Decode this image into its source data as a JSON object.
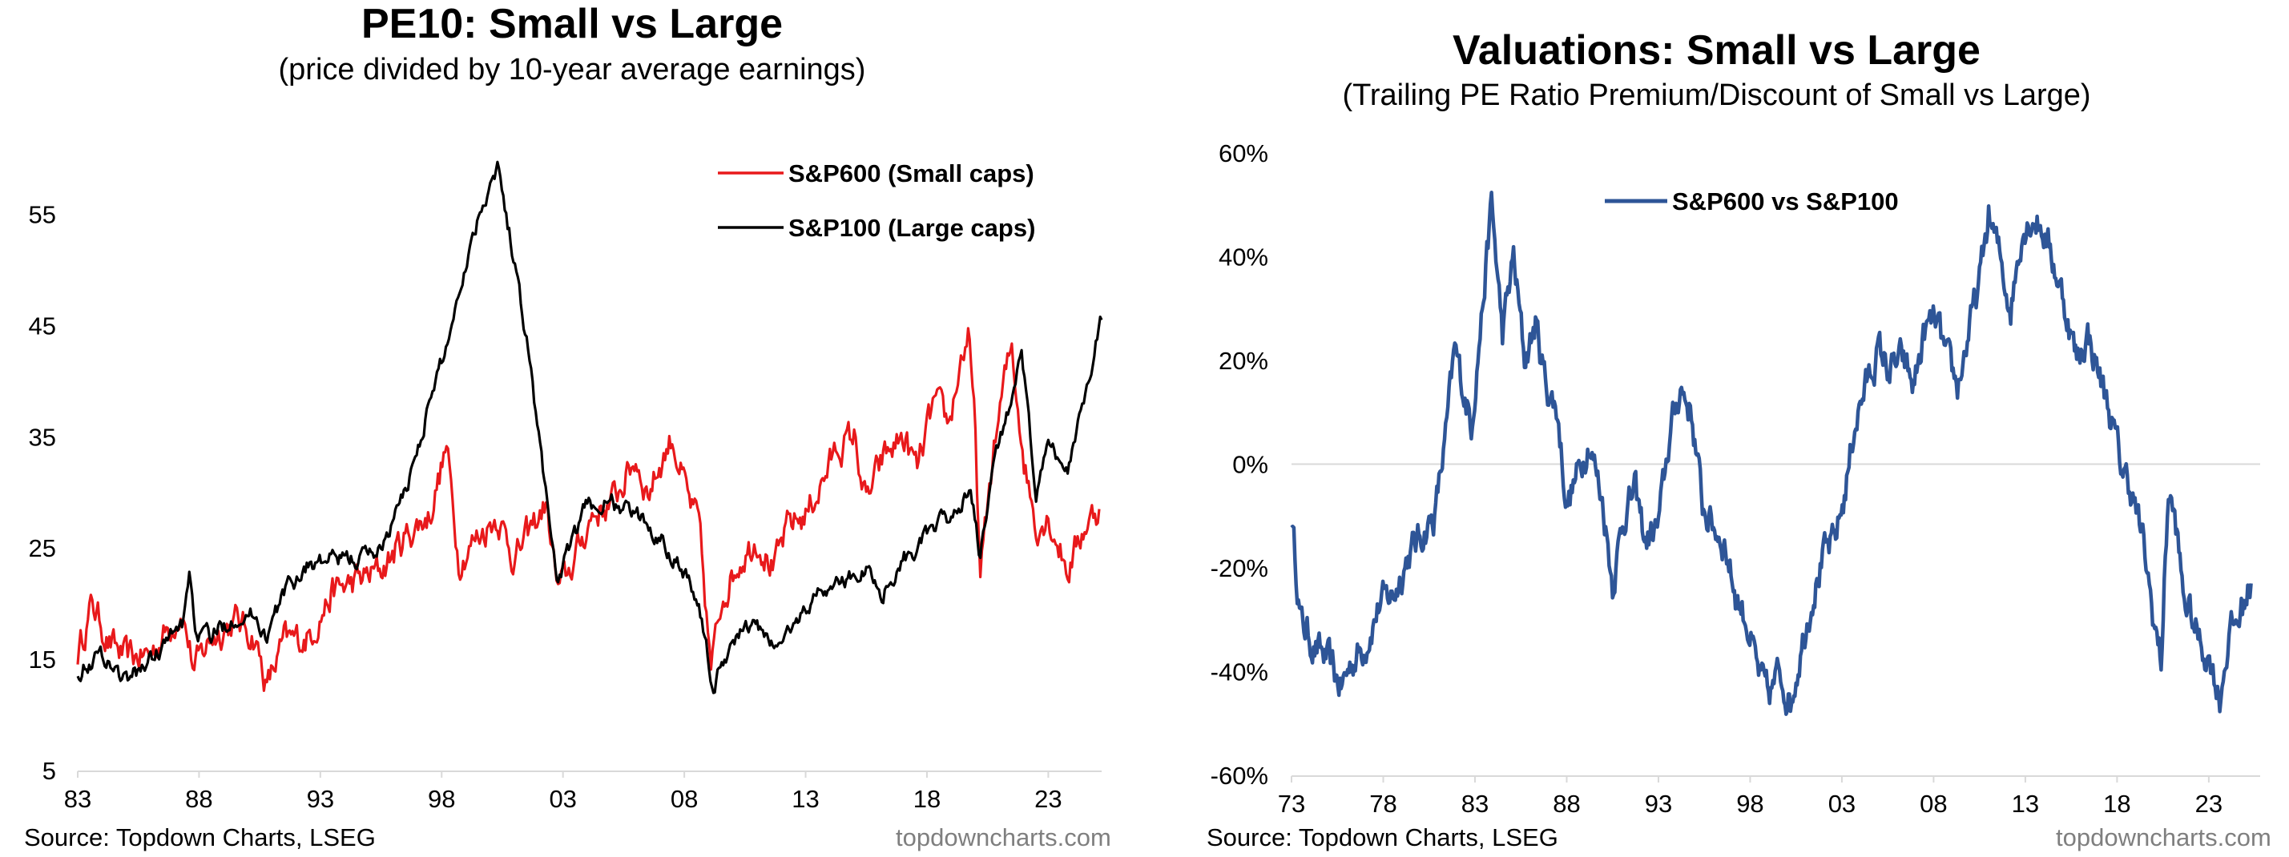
{
  "left": {
    "title": "PE10: Small vs Large",
    "subtitle": "(price divided by 10-year average earnings)",
    "source": "Source: Topdown Charts, LSEG",
    "brand": "topdowncharts.com"
  },
  "right": {
    "title": "Valuations: Small vs Large",
    "subtitle": "(Trailing PE Ratio Premium/Discount of Small vs Large)",
    "source": "Source: Topdown Charts, LSEG",
    "brand": "topdowncharts.com"
  },
  "chart_data": [
    {
      "type": "line",
      "title": "PE10: Small vs Large",
      "subtitle": "(price divided by 10-year average earnings)",
      "xlabel": "",
      "ylabel": "",
      "xlim": [
        1983,
        2025.2
      ],
      "ylim": [
        5,
        60
      ],
      "yticks": [
        5,
        15,
        25,
        35,
        45,
        55
      ],
      "xticks": [
        1983,
        1988,
        1993,
        1998,
        2003,
        2008,
        2013,
        2018,
        2023
      ],
      "xtick_labels": [
        "83",
        "88",
        "93",
        "98",
        "03",
        "08",
        "13",
        "18",
        "23"
      ],
      "grid": false,
      "legend_position": "top-right",
      "series": [
        {
          "name": "S&P600 (Small caps)",
          "color": "#e8191b",
          "points": [
            [
              1983.0,
              15.5
            ],
            [
              1983.6,
              20
            ],
            [
              1984.3,
              16.5
            ],
            [
              1985,
              15
            ],
            [
              1986,
              15.5
            ],
            [
              1987.3,
              19.5
            ],
            [
              1987.8,
              14
            ],
            [
              1988.5,
              17
            ],
            [
              1989.5,
              18.5
            ],
            [
              1990.3,
              17
            ],
            [
              1990.8,
              12.5
            ],
            [
              1991.5,
              16.5
            ],
            [
              1992.5,
              17
            ],
            [
              1993.5,
              21
            ],
            [
              1994.5,
              22
            ],
            [
              1995.5,
              23
            ],
            [
              1996.5,
              26
            ],
            [
              1997.5,
              28
            ],
            [
              1998.2,
              34
            ],
            [
              1998.7,
              24
            ],
            [
              1999.5,
              26
            ],
            [
              2000.3,
              28
            ],
            [
              2001,
              24
            ],
            [
              2001.8,
              27
            ],
            [
              2002.3,
              29
            ],
            [
              2002.8,
              21
            ],
            [
              2003.3,
              23
            ],
            [
              2004.2,
              28
            ],
            [
              2005,
              29
            ],
            [
              2006,
              33
            ],
            [
              2006.5,
              30
            ],
            [
              2007.5,
              35
            ],
            [
              2008.2,
              29
            ],
            [
              2008.6,
              27
            ],
            [
              2009.1,
              14
            ],
            [
              2009.6,
              21
            ],
            [
              2010.3,
              24
            ],
            [
              2011,
              26
            ],
            [
              2011.7,
              23
            ],
            [
              2012.3,
              27
            ],
            [
              2013,
              28
            ],
            [
              2013.7,
              31
            ],
            [
              2014.3,
              34
            ],
            [
              2015,
              35
            ],
            [
              2015.5,
              29
            ],
            [
              2016.2,
              33
            ],
            [
              2017,
              35
            ],
            [
              2017.6,
              32
            ],
            [
              2018.3,
              38
            ],
            [
              2018.9,
              36
            ],
            [
              2019.4,
              42
            ],
            [
              2019.7,
              44
            ],
            [
              2020.0,
              35
            ],
            [
              2020.2,
              22
            ],
            [
              2020.7,
              33
            ],
            [
              2021.2,
              40
            ],
            [
              2021.5,
              43
            ],
            [
              2022,
              33
            ],
            [
              2022.5,
              27
            ],
            [
              2023,
              28
            ],
            [
              2023.8,
              23
            ],
            [
              2024.5,
              27
            ],
            [
              2025.1,
              28.5
            ]
          ]
        },
        {
          "name": "S&P100 (Large caps)",
          "color": "#000000",
          "points": [
            [
              1983.0,
              14
            ],
            [
              1984,
              15.5
            ],
            [
              1985,
              13
            ],
            [
              1986,
              15
            ],
            [
              1987.3,
              18
            ],
            [
              1987.6,
              23
            ],
            [
              1987.9,
              17
            ],
            [
              1988.5,
              17
            ],
            [
              1989.5,
              19
            ],
            [
              1990.3,
              19
            ],
            [
              1990.8,
              17
            ],
            [
              1991.5,
              21
            ],
            [
              1992.5,
              23.5
            ],
            [
              1993.5,
              24
            ],
            [
              1994.5,
              24
            ],
            [
              1995.5,
              25
            ],
            [
              1996.5,
              30
            ],
            [
              1997.5,
              38
            ],
            [
              1998.3,
              44
            ],
            [
              1998.8,
              49
            ],
            [
              1999.4,
              54
            ],
            [
              2000.0,
              58
            ],
            [
              2000.3,
              59.5
            ],
            [
              2000.9,
              52
            ],
            [
              2001.5,
              44
            ],
            [
              2002,
              35
            ],
            [
              2002.4,
              28
            ],
            [
              2002.8,
              22
            ],
            [
              2003.3,
              25
            ],
            [
              2004,
              29
            ],
            [
              2005,
              29
            ],
            [
              2006,
              28
            ],
            [
              2007,
              26
            ],
            [
              2008,
              23
            ],
            [
              2008.6,
              20
            ],
            [
              2009.2,
              12
            ],
            [
              2009.6,
              15
            ],
            [
              2010.3,
              17.5
            ],
            [
              2011,
              18
            ],
            [
              2011.7,
              16
            ],
            [
              2012.5,
              18
            ],
            [
              2013.5,
              21
            ],
            [
              2014.5,
              22
            ],
            [
              2015.5,
              23
            ],
            [
              2016.2,
              21
            ],
            [
              2017,
              24
            ],
            [
              2018,
              26
            ],
            [
              2019,
              28
            ],
            [
              2019.8,
              30
            ],
            [
              2020.2,
              24
            ],
            [
              2020.8,
              33
            ],
            [
              2021.4,
              38
            ],
            [
              2021.9,
              42
            ],
            [
              2022.5,
              30
            ],
            [
              2023,
              34
            ],
            [
              2023.8,
              32
            ],
            [
              2024.4,
              38
            ],
            [
              2024.9,
              43
            ],
            [
              2025.2,
              45.5
            ]
          ]
        }
      ]
    },
    {
      "type": "line",
      "title": "Valuations: Small vs Large",
      "subtitle": "(Trailing PE Ratio Premium/Discount of Small vs Large)",
      "xlabel": "",
      "ylabel": "",
      "xlim": [
        1973,
        2025.8
      ],
      "ylim": [
        -60,
        60
      ],
      "yticks": [
        -60,
        -40,
        -20,
        0,
        20,
        40,
        60
      ],
      "ytick_labels": [
        "-60%",
        "-40%",
        "-20%",
        "0%",
        "20%",
        "40%",
        "60%"
      ],
      "xticks": [
        1973,
        1978,
        1983,
        1988,
        1993,
        1998,
        2003,
        2008,
        2013,
        2018,
        2023
      ],
      "xtick_labels": [
        "73",
        "78",
        "83",
        "88",
        "93",
        "98",
        "03",
        "08",
        "13",
        "18",
        "23"
      ],
      "grid": false,
      "legend_position": "top-center",
      "series": [
        {
          "name": "S&P600 vs S&P100",
          "color": "#2e5597",
          "points": [
            [
              1973.0,
              -10
            ],
            [
              1973.5,
              -30
            ],
            [
              1974.2,
              -35
            ],
            [
              1975,
              -38
            ],
            [
              1975.7,
              -43
            ],
            [
              1976.3,
              -38
            ],
            [
              1977,
              -35
            ],
            [
              1977.8,
              -27
            ],
            [
              1978.6,
              -25
            ],
            [
              1979.3,
              -18
            ],
            [
              1980,
              -14
            ],
            [
              1980.8,
              -10
            ],
            [
              1981.4,
              5
            ],
            [
              1981.9,
              22
            ],
            [
              1982.4,
              14
            ],
            [
              1982.8,
              8
            ],
            [
              1983.4,
              30
            ],
            [
              1983.9,
              50
            ],
            [
              1984.5,
              25
            ],
            [
              1985.1,
              40
            ],
            [
              1985.7,
              20
            ],
            [
              1986.3,
              27
            ],
            [
              1986.9,
              15
            ],
            [
              1987.5,
              10
            ],
            [
              1988,
              -8
            ],
            [
              1988.6,
              -2
            ],
            [
              1989.2,
              5
            ],
            [
              1990,
              -8
            ],
            [
              1990.5,
              -23
            ],
            [
              1991.1,
              -10
            ],
            [
              1991.7,
              -5
            ],
            [
              1992.3,
              -15
            ],
            [
              1993,
              -12
            ],
            [
              1993.6,
              5
            ],
            [
              1994.2,
              15
            ],
            [
              1994.8,
              10
            ],
            [
              1995.4,
              -8
            ],
            [
              1996,
              -12
            ],
            [
              1996.6,
              -15
            ],
            [
              1997.2,
              -25
            ],
            [
              1997.8,
              -30
            ],
            [
              1998.4,
              -40
            ],
            [
              1999,
              -45
            ],
            [
              1999.6,
              -40
            ],
            [
              2000.2,
              -46
            ],
            [
              2000.8,
              -35
            ],
            [
              2001.4,
              -25
            ],
            [
              2002,
              -18
            ],
            [
              2002.6,
              -15
            ],
            [
              2003.2,
              -5
            ],
            [
              2003.7,
              8
            ],
            [
              2004.3,
              15
            ],
            [
              2005,
              22
            ],
            [
              2005.6,
              18
            ],
            [
              2006.3,
              20
            ],
            [
              2006.9,
              15
            ],
            [
              2007.5,
              25
            ],
            [
              2008.1,
              28
            ],
            [
              2008.7,
              20
            ],
            [
              2009.3,
              15
            ],
            [
              2009.9,
              25
            ],
            [
              2010.5,
              35
            ],
            [
              2011.0,
              48
            ],
            [
              2011.6,
              40
            ],
            [
              2012.2,
              30
            ],
            [
              2012.8,
              45
            ],
            [
              2013.4,
              48
            ],
            [
              2014,
              45
            ],
            [
              2014.6,
              38
            ],
            [
              2015.2,
              30
            ],
            [
              2015.8,
              20
            ],
            [
              2016.4,
              25
            ],
            [
              2017,
              18
            ],
            [
              2017.6,
              10
            ],
            [
              2018.2,
              0
            ],
            [
              2018.8,
              -5
            ],
            [
              2019.4,
              -15
            ],
            [
              2020,
              -30
            ],
            [
              2020.4,
              -38
            ],
            [
              2020.8,
              -5
            ],
            [
              2021.2,
              -12
            ],
            [
              2021.6,
              -25
            ],
            [
              2022.1,
              -30
            ],
            [
              2022.6,
              -35
            ],
            [
              2023.1,
              -38
            ],
            [
              2023.6,
              -45
            ],
            [
              2024.1,
              -33
            ],
            [
              2024.6,
              -30
            ],
            [
              2025.3,
              -23
            ]
          ]
        }
      ]
    }
  ]
}
